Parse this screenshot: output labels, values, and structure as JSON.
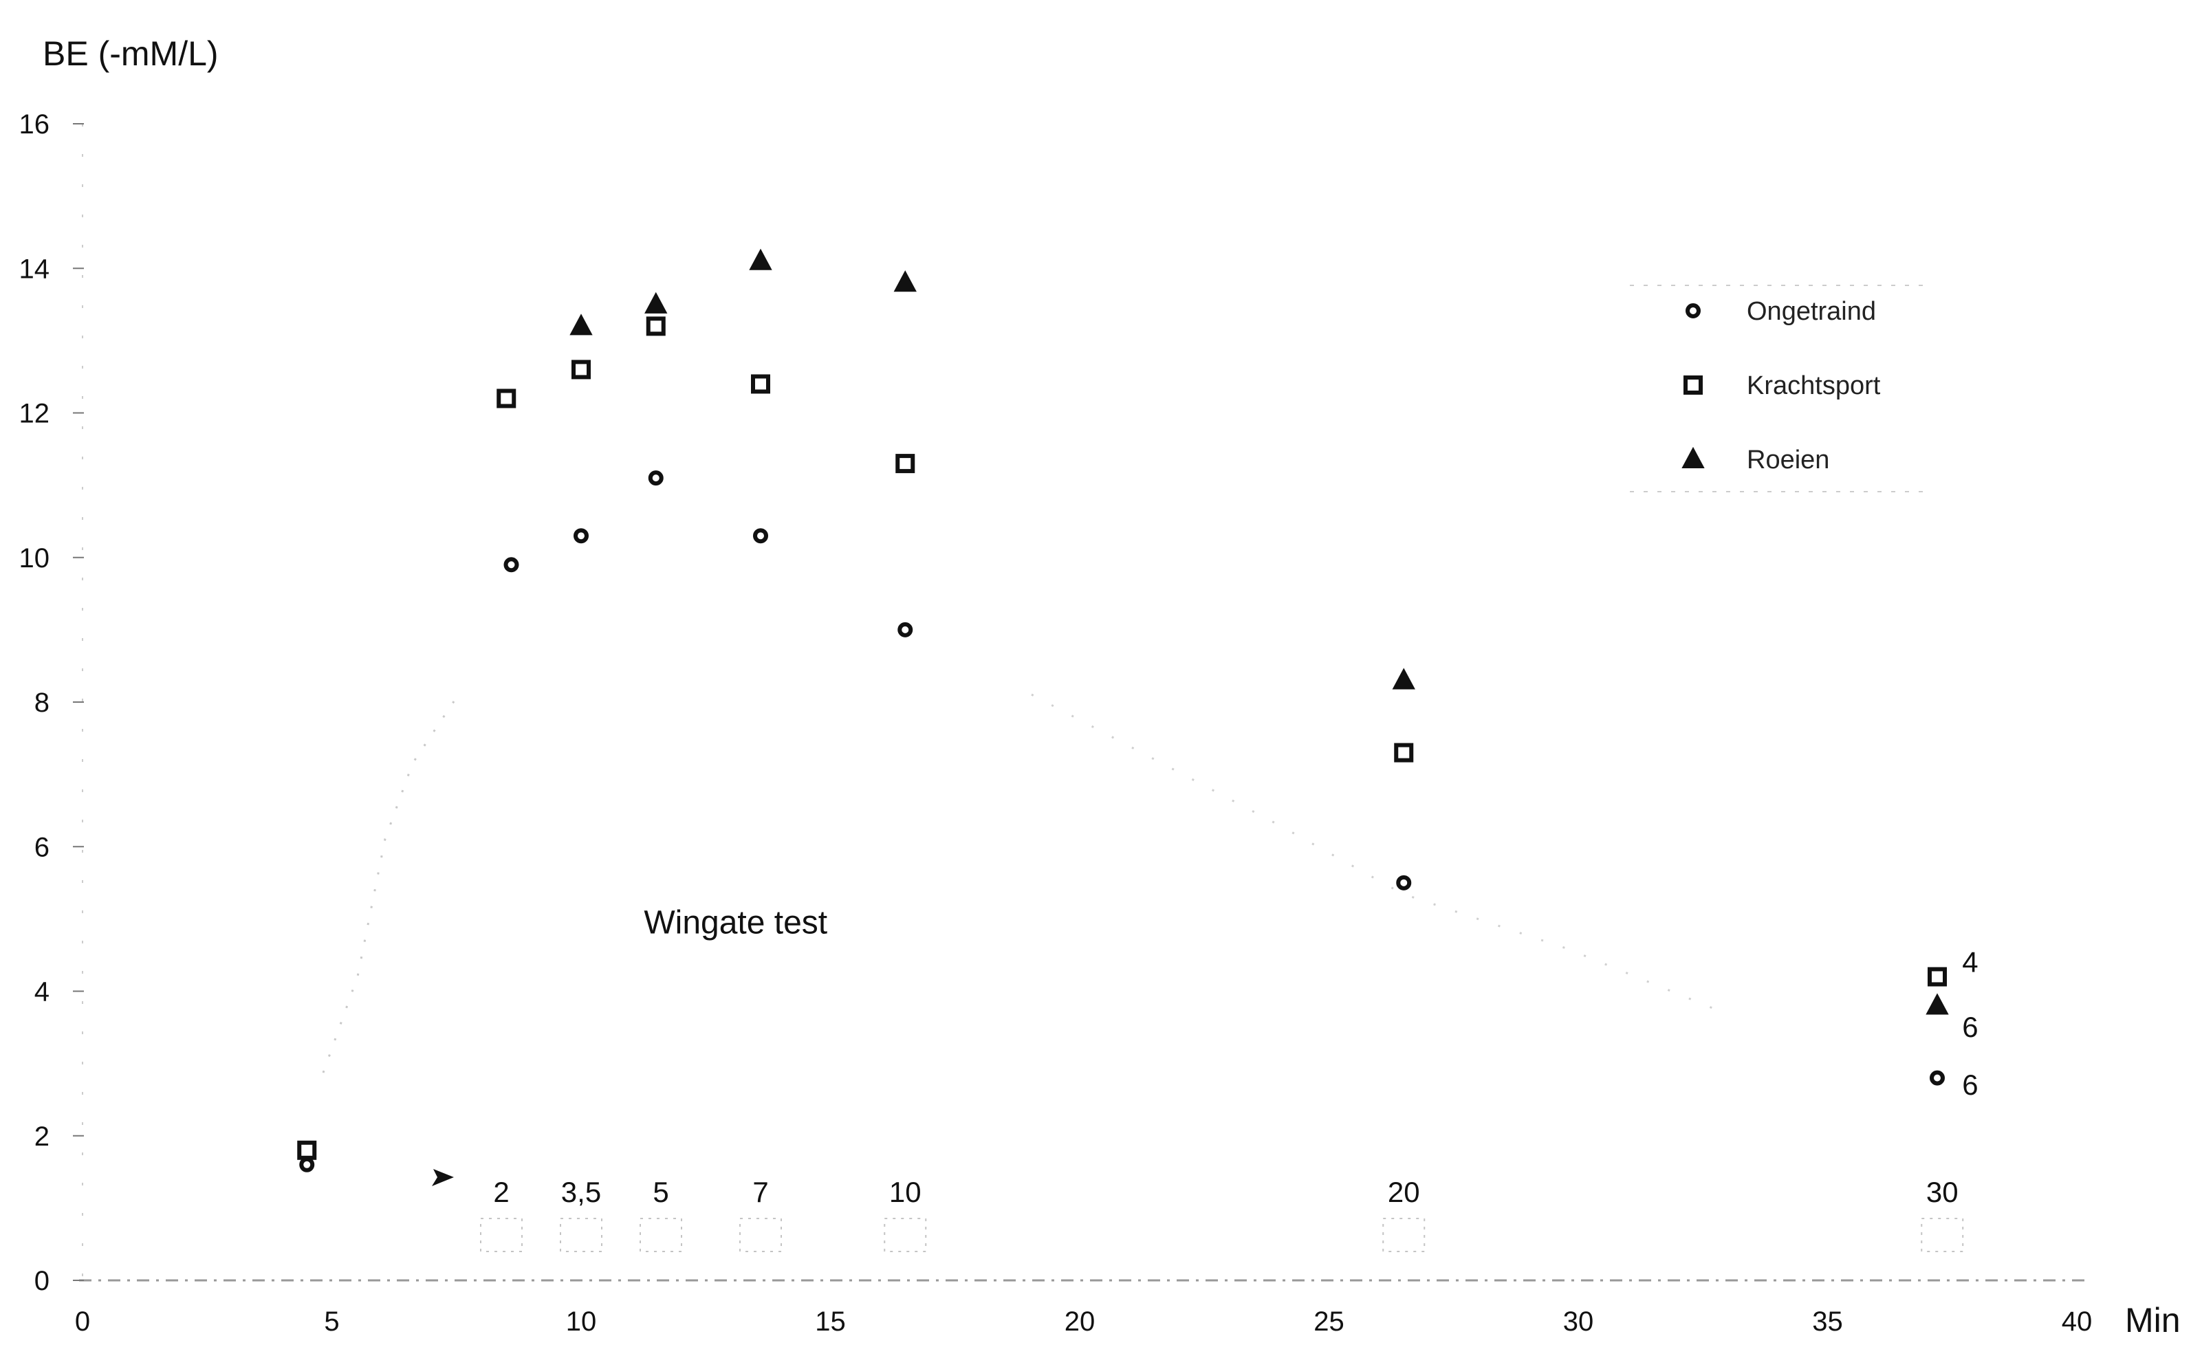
{
  "chart_data": {
    "type": "scatter",
    "title": "",
    "ylabel": "BE (-mM/L)",
    "xlabel": "Min",
    "xlim": [
      0,
      40
    ],
    "ylim": [
      0,
      16
    ],
    "x_ticks": [
      {
        "label": "0",
        "value": 0
      },
      {
        "label": "5",
        "value": 5
      },
      {
        "label": "10",
        "value": 10
      },
      {
        "label": "15",
        "value": 15
      },
      {
        "label": "20",
        "value": 20
      },
      {
        "label": "25",
        "value": 25
      },
      {
        "label": "30",
        "value": 30
      },
      {
        "label": "35",
        "value": 35
      },
      {
        "label": "40",
        "value": 40
      }
    ],
    "y_ticks": [
      {
        "label": "0",
        "value": 0
      },
      {
        "label": "2",
        "value": 2
      },
      {
        "label": "4",
        "value": 4
      },
      {
        "label": "6",
        "value": 6
      },
      {
        "label": "8",
        "value": 8
      },
      {
        "label": "10",
        "value": 10
      },
      {
        "label": "12",
        "value": 12
      },
      {
        "label": "14",
        "value": 14
      },
      {
        "label": "16",
        "value": 16
      }
    ],
    "annotation": {
      "text": "Wingate test",
      "x": 13.1,
      "y": 4.8
    },
    "time_labels": [
      {
        "label": "2",
        "x": 8.4
      },
      {
        "label": "3,5",
        "x": 10.0
      },
      {
        "label": "5",
        "x": 11.6
      },
      {
        "label": "7",
        "x": 13.6
      },
      {
        "label": "10",
        "x": 16.5
      },
      {
        "label": "20",
        "x": 26.5
      },
      {
        "label": "30",
        "x": 37.3
      }
    ],
    "end_labels": [
      {
        "label": "4",
        "x": 37.7,
        "y": 4.4
      },
      {
        "label": "6",
        "x": 37.7,
        "y": 3.5
      },
      {
        "label": "6",
        "x": 37.7,
        "y": 2.7
      }
    ],
    "legend": {
      "position": "top-right"
    },
    "series": [
      {
        "name": "Ongetraind",
        "marker": "circle",
        "x": [
          4.5,
          8.6,
          10.0,
          11.5,
          13.6,
          16.5,
          26.5,
          37.2
        ],
        "y": [
          1.6,
          9.9,
          10.3,
          11.1,
          10.3,
          9.0,
          5.5,
          2.8
        ]
      },
      {
        "name": "Krachtsport",
        "marker": "square",
        "x": [
          4.5,
          8.5,
          10.0,
          11.5,
          13.6,
          16.5,
          26.5,
          37.2
        ],
        "y": [
          1.8,
          12.2,
          12.6,
          13.2,
          12.4,
          11.3,
          7.3,
          4.2
        ]
      },
      {
        "name": "Roeien",
        "marker": "triangle",
        "x": [
          10.0,
          11.5,
          13.6,
          16.5,
          26.5,
          37.2
        ],
        "y": [
          13.2,
          13.5,
          14.1,
          13.8,
          8.3,
          3.8
        ]
      }
    ]
  }
}
